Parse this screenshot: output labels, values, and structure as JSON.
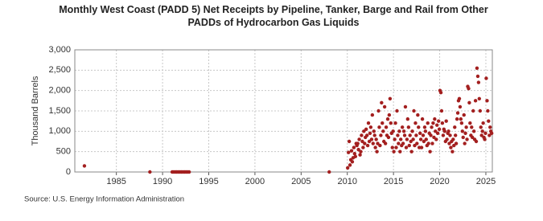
{
  "chart_data": {
    "type": "scatter",
    "title": "Monthly West Coast (PADD 5) Net Receipts by Pipeline, Tanker, Barge and Rail from Other PADDs of Hydrocarbon Gas Liquids",
    "y_label": "Thousand Barrels",
    "source": "Source: U.S. Energy Information Administration",
    "color": "#a31f1f",
    "grid": true,
    "xlim": [
      1980.5,
      2025.7
    ],
    "ylim": [
      0,
      3000
    ],
    "xticks": [
      1985,
      1990,
      1995,
      2000,
      2005,
      2010,
      2015,
      2020,
      2025
    ],
    "yticks": [
      0,
      500,
      {
        "value": 1000,
        "label": "1,000"
      },
      {
        "value": 1500,
        "label": "1,500"
      },
      {
        "value": 2000,
        "label": "2,000"
      },
      {
        "value": 2500,
        "label": "2,500"
      },
      {
        "value": 3000,
        "label": "3,000"
      }
    ],
    "x": [
      1981.54,
      1988.63,
      1991.04,
      1991.21,
      1991.38,
      1991.54,
      1991.71,
      1991.88,
      1992.04,
      1992.21,
      1992.38,
      1992.54,
      1992.71,
      1992.88,
      2008.04,
      2010.04,
      2010.13,
      2010.21,
      2010.29,
      2010.38,
      2010.46,
      2010.54,
      2010.63,
      2010.71,
      2010.79,
      2010.88,
      2010.96,
      2011.04,
      2011.13,
      2011.21,
      2011.29,
      2011.38,
      2011.46,
      2011.54,
      2011.63,
      2011.71,
      2011.79,
      2011.88,
      2011.96,
      2012.04,
      2012.13,
      2012.21,
      2012.29,
      2012.38,
      2012.46,
      2012.54,
      2012.63,
      2012.71,
      2012.79,
      2012.88,
      2012.96,
      2013.04,
      2013.13,
      2013.21,
      2013.29,
      2013.38,
      2013.46,
      2013.54,
      2013.63,
      2013.71,
      2013.79,
      2013.88,
      2013.96,
      2014.04,
      2014.13,
      2014.21,
      2014.29,
      2014.38,
      2014.46,
      2014.54,
      2014.63,
      2014.71,
      2014.79,
      2014.88,
      2014.96,
      2015.04,
      2015.13,
      2015.21,
      2015.29,
      2015.38,
      2015.46,
      2015.54,
      2015.63,
      2015.71,
      2015.79,
      2015.88,
      2015.96,
      2016.04,
      2016.13,
      2016.21,
      2016.29,
      2016.38,
      2016.46,
      2016.54,
      2016.63,
      2016.71,
      2016.79,
      2016.88,
      2016.96,
      2017.04,
      2017.13,
      2017.21,
      2017.29,
      2017.38,
      2017.46,
      2017.54,
      2017.63,
      2017.71,
      2017.79,
      2017.88,
      2017.96,
      2018.04,
      2018.13,
      2018.21,
      2018.29,
      2018.38,
      2018.46,
      2018.54,
      2018.63,
      2018.71,
      2018.79,
      2018.88,
      2018.96,
      2019.04,
      2019.13,
      2019.21,
      2019.29,
      2019.38,
      2019.46,
      2019.54,
      2019.63,
      2019.71,
      2019.79,
      2019.88,
      2019.96,
      2020.04,
      2020.13,
      2020.21,
      2020.29,
      2020.38,
      2020.46,
      2020.54,
      2020.63,
      2020.71,
      2020.79,
      2020.88,
      2020.96,
      2021.04,
      2021.13,
      2021.21,
      2021.29,
      2021.38,
      2021.46,
      2021.54,
      2021.63,
      2021.71,
      2021.79,
      2021.88,
      2021.96,
      2022.04,
      2022.13,
      2022.21,
      2022.29,
      2022.38,
      2022.46,
      2022.54,
      2022.63,
      2022.71,
      2022.79,
      2022.88,
      2022.96,
      2023.04,
      2023.13,
      2023.21,
      2023.29,
      2023.38,
      2023.46,
      2023.54,
      2023.63,
      2023.71,
      2023.79,
      2023.88,
      2023.96,
      2024.04,
      2024.13,
      2024.21,
      2024.29,
      2024.38,
      2024.46,
      2024.54,
      2024.63,
      2024.71,
      2024.79,
      2024.88,
      2024.96,
      2025.04,
      2025.13,
      2025.21,
      2025.29,
      2025.38,
      2025.46,
      2025.54,
      2025.63
    ],
    "values": [
      150,
      0,
      0,
      0,
      0,
      0,
      0,
      0,
      0,
      0,
      0,
      0,
      0,
      0,
      0,
      100,
      480,
      750,
      170,
      300,
      520,
      250,
      350,
      600,
      450,
      380,
      700,
      650,
      700,
      550,
      800,
      420,
      500,
      900,
      750,
      600,
      1000,
      700,
      850,
      1050,
      900,
      650,
      1200,
      750,
      950,
      1100,
      800,
      1400,
      700,
      1000,
      900,
      600,
      800,
      500,
      700,
      1500,
      1100,
      650,
      900,
      1700,
      1200,
      1000,
      750,
      1600,
      700,
      1100,
      900,
      1300,
      850,
      1400,
      1800,
      1200,
      950,
      600,
      1000,
      500,
      800,
      1200,
      600,
      1500,
      900,
      700,
      1000,
      500,
      800,
      650,
      1100,
      700,
      1000,
      900,
      1600,
      600,
      800,
      1300,
      1100,
      650,
      900,
      750,
      500,
      1000,
      800,
      1500,
      650,
      1200,
      900,
      700,
      1400,
      1100,
      600,
      950,
      800,
      600,
      1300,
      900,
      750,
      1100,
      1000,
      800,
      650,
      1200,
      700,
      950,
      500,
      900,
      1100,
      700,
      1200,
      850,
      1300,
      1000,
      800,
      1150,
      950,
      1250,
      1050,
      2000,
      1950,
      1500,
      1200,
      900,
      1050,
      1000,
      750,
      1250,
      800,
      950,
      1000,
      700,
      900,
      600,
      750,
      500,
      800,
      650,
      1100,
      900,
      700,
      1300,
      1450,
      1750,
      1800,
      1600,
      1300,
      1200,
      1000,
      850,
      1400,
      700,
      950,
      1100,
      800,
      2100,
      2050,
      1700,
      1200,
      900,
      1100,
      850,
      1500,
      1000,
      800,
      1750,
      750,
      2550,
      2350,
      2200,
      1800,
      1500,
      1100,
      900,
      1000,
      1200,
      850,
      800,
      950,
      2300,
      1750,
      1500,
      1250,
      900,
      1100,
      1000,
      950
    ]
  }
}
